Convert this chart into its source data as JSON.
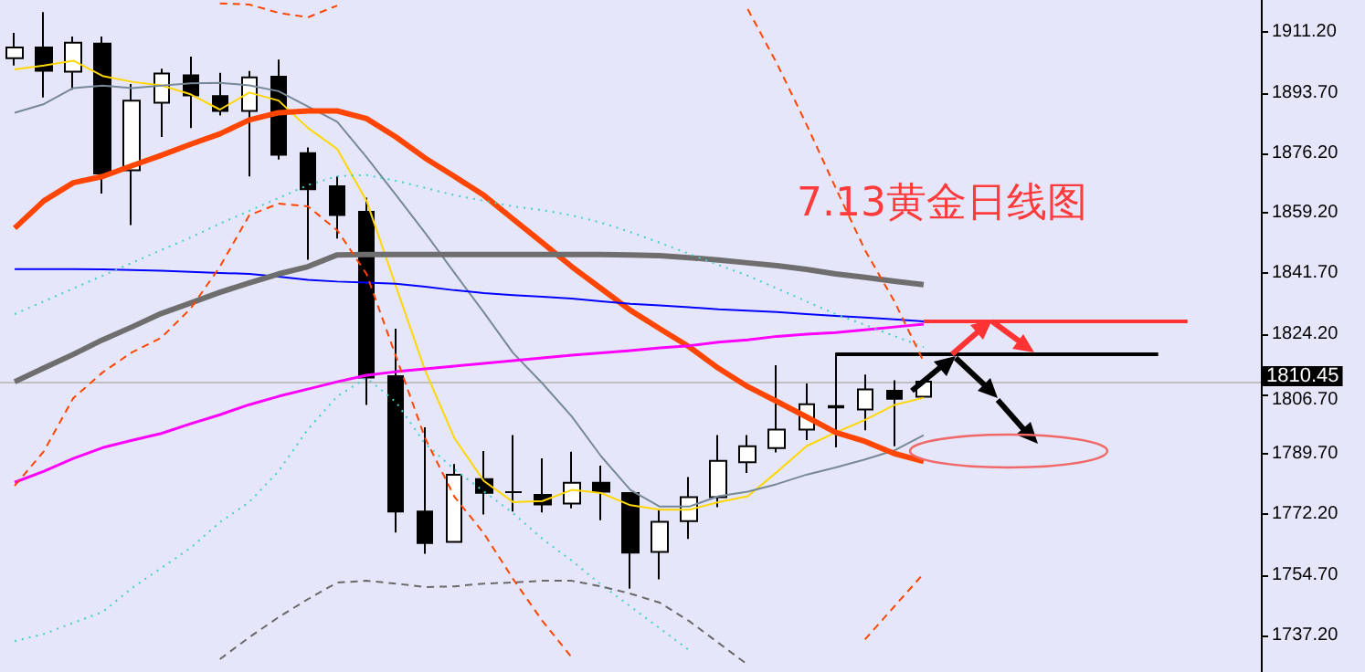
{
  "chart_data": {
    "type": "candlestick",
    "title": "7.13黄金日线图",
    "marker": "none",
    "tick_labels": "y",
    "categories": [
      null,
      null,
      null,
      null,
      null,
      null,
      null,
      null,
      null,
      null,
      null,
      null,
      null,
      null,
      null,
      null,
      null,
      null,
      null,
      null,
      null,
      null,
      null,
      null,
      null,
      null,
      null,
      null,
      null,
      null,
      null,
      null,
      null,
      null,
      null,
      null,
      null,
      null,
      null,
      null,
      null,
      null,
      null
    ],
    "ohlc": [
      [
        1903.7,
        1911.0,
        1901.6,
        1906.8
      ],
      [
        1906.8,
        1917.0,
        1892.4,
        1900.1
      ],
      [
        1899.8,
        1910.0,
        1894.6,
        1908.2
      ],
      [
        1907.9,
        1910.0,
        1864.7,
        1870.5
      ],
      [
        1871.4,
        1896.3,
        1855.6,
        1891.5
      ],
      [
        1890.9,
        1900.7,
        1881.0,
        1899.3
      ],
      [
        1898.8,
        1904.2,
        1883.6,
        1893.0
      ],
      [
        1892.8,
        1899.5,
        1887.2,
        1888.5
      ],
      [
        1888.5,
        1900.0,
        1869.6,
        1898.2
      ],
      [
        1898.4,
        1903.3,
        1874.5,
        1875.9
      ],
      [
        1876.3,
        1878.0,
        1845.6,
        1865.9
      ],
      [
        1866.8,
        1869.6,
        1851.7,
        1858.5
      ],
      [
        1859.4,
        1863.5,
        1803.7,
        1811.6
      ],
      [
        1812.0,
        1825.7,
        1766.9,
        1773.0
      ],
      [
        1773.0,
        1797.3,
        1760.8,
        1763.9
      ],
      [
        1764.2,
        1786.7,
        1764.0,
        1783.6
      ],
      [
        1782.3,
        1790.4,
        1772.1,
        1778.4
      ],
      [
        1778.6,
        1795.0,
        1773.0,
        1778.6
      ],
      [
        1777.8,
        1788.3,
        1772.7,
        1775.0
      ],
      [
        1775.3,
        1790.2,
        1773.9,
        1781.3
      ],
      [
        1781.3,
        1786.2,
        1770.5,
        1778.7
      ],
      [
        1778.3,
        1778.6,
        1750.7,
        1761.1
      ],
      [
        1761.3,
        1773.6,
        1753.4,
        1770.0
      ],
      [
        1770.2,
        1782.9,
        1765.1,
        1777.1
      ],
      [
        1777.1,
        1795.0,
        1774.2,
        1787.6
      ],
      [
        1787.2,
        1795.0,
        1784.1,
        1791.8
      ],
      [
        1791.3,
        1815.2,
        1790.0,
        1796.6
      ],
      [
        1796.6,
        1809.9,
        1793.6,
        1803.9
      ],
      [
        1803.4,
        1818.7,
        1791.5,
        1803.0
      ],
      [
        1802.4,
        1812.5,
        1796.4,
        1808.2
      ],
      [
        1807.8,
        1810.8,
        1791.8,
        1805.5
      ],
      [
        1806.1,
        1810.45,
        1806.1,
        1810.45
      ],
      null,
      null,
      null,
      null,
      null,
      null,
      null,
      null,
      null,
      null,
      null
    ],
    "series": [
      {
        "type": "line",
        "color": "#ffd700",
        "values": [
          1900.5,
          1901.6,
          1903.0,
          1898.6,
          1896.9,
          1895.9,
          1893.3,
          1888.9,
          1893.8,
          1891.5,
          1883.6,
          1877.5,
          1862.6,
          1838.0,
          1813.6,
          1794.1,
          1781.8,
          1775.7,
          1776.0,
          1779.2,
          1778.3,
          1774.8,
          1773.5,
          1773.5,
          1775.7,
          1777.4,
          1784.4,
          1791.8,
          1795.8,
          1799.4,
          1803.7,
          1805.8,
          null,
          null,
          null,
          null,
          null,
          null,
          null,
          null,
          null,
          null,
          null
        ]
      },
      {
        "type": "line",
        "color": "#778899",
        "values": [
          1888.0,
          1890.5,
          1895.1,
          1895.8,
          1895.1,
          1895.8,
          1896.5,
          1896.6,
          1895.9,
          1894.2,
          1889.8,
          1885.4,
          1875.2,
          1864.3,
          1853.3,
          1841.8,
          1830.4,
          1818.7,
          1809.9,
          1800.4,
          1788.9,
          1779.2,
          1774.4,
          1774.4,
          1777.4,
          1778.7,
          1780.9,
          1783.6,
          1785.7,
          1788.0,
          1790.6,
          1795.0,
          null,
          null,
          null,
          null,
          null,
          null,
          null,
          null,
          null,
          null,
          null
        ]
      },
      {
        "type": "line",
        "color": "#ff4500",
        "values": [
          1854.7,
          1862.6,
          1867.8,
          1869.6,
          1872.7,
          1875.7,
          1878.9,
          1881.9,
          1885.9,
          1888.0,
          1888.5,
          1888.5,
          1886.3,
          1881.0,
          1874.9,
          1869.6,
          1864.2,
          1857.3,
          1850.5,
          1843.6,
          1837.3,
          1831.0,
          1825.7,
          1820.5,
          1814.3,
          1809.0,
          1804.7,
          1800.3,
          1795.8,
          1793.2,
          1789.7,
          1787.4,
          null,
          null,
          null,
          null,
          null,
          null,
          null,
          null,
          null,
          null,
          null
        ]
      },
      {
        "type": "line",
        "color": "#0000ff",
        "values": [
          1842.9,
          1842.9,
          1842.9,
          1842.8,
          1842.6,
          1842.4,
          1842.1,
          1841.8,
          1841.5,
          1840.7,
          1839.8,
          1839.3,
          1839.0,
          1838.7,
          1837.8,
          1836.8,
          1836.0,
          1835.4,
          1834.9,
          1834.4,
          1833.6,
          1832.9,
          1832.4,
          1831.9,
          1831.3,
          1830.9,
          1830.5,
          1829.9,
          1829.4,
          1828.9,
          1828.4,
          1827.8,
          null,
          null,
          null,
          null,
          null,
          null,
          null,
          null,
          null,
          null,
          null
        ]
      },
      {
        "type": "line",
        "color": "#6e6e6e",
        "values": [
          1810.4,
          1814.4,
          1818.3,
          1822.5,
          1826.2,
          1830.1,
          1833.1,
          1836.2,
          1838.9,
          1841.5,
          1843.6,
          1847.0,
          1847.1,
          1847.1,
          1847.1,
          1847.1,
          1847.1,
          1847.1,
          1847.1,
          1847.1,
          1847.1,
          1847.0,
          1846.8,
          1846.2,
          1845.5,
          1844.7,
          1843.9,
          1842.8,
          1841.5,
          1840.5,
          1839.4,
          1838.4,
          null,
          null,
          null,
          null,
          null,
          null,
          null,
          null,
          null,
          null,
          null
        ]
      },
      {
        "type": "line",
        "color": "#ff00ff",
        "values": [
          1781.4,
          1784.6,
          1788.3,
          1791.4,
          1793.5,
          1795.5,
          1798.3,
          1800.9,
          1803.8,
          1806.2,
          1808.3,
          1810.4,
          1812.3,
          1813.3,
          1814.1,
          1814.9,
          1815.7,
          1816.5,
          1817.3,
          1818.1,
          1818.7,
          1819.4,
          1820.2,
          1820.8,
          1821.8,
          1822.5,
          1823.5,
          1824.1,
          1824.6,
          1825.4,
          1826.2,
          1827.0,
          null,
          null,
          null,
          null,
          null,
          null,
          null,
          null,
          null,
          null,
          null
        ]
      },
      {
        "type": "line",
        "color": "#40d0c8",
        "line_style": "dotted",
        "values": [
          1829.9,
          1833.6,
          1837.3,
          1841.0,
          1844.7,
          1848.4,
          1852.0,
          1856.0,
          1859.7,
          1863.4,
          1867.1,
          1869.7,
          1870.0,
          1868.4,
          1866.3,
          1864.2,
          1862.6,
          1861.0,
          1859.9,
          1858.4,
          1856.3,
          1853.6,
          1850.5,
          1847.3,
          1844.1,
          1841.0,
          1837.3,
          1833.6,
          1829.9,
          1826.8,
          1823.6,
          1820.4,
          null,
          null,
          null,
          null,
          null,
          null,
          null,
          null,
          null,
          null,
          null
        ]
      },
      {
        "type": "line",
        "color": "#40d0c8",
        "line_style": "dotted",
        "values": [
          1735.6,
          1737.7,
          1740.9,
          1744.0,
          1750.9,
          1756.7,
          1762.5,
          1769.9,
          1775.7,
          1784.6,
          1796.7,
          1806.2,
          1811.5,
          1804.6,
          1792.5,
          1785.1,
          1778.8,
          1772.5,
          1765.1,
          1758.8,
          1751.9,
          1745.6,
          1739.3,
          1733.0,
          null,
          null,
          null,
          null,
          null,
          null,
          null,
          null,
          null,
          null,
          null,
          null,
          null,
          null,
          null,
          null,
          null,
          null,
          null
        ]
      },
      {
        "type": "line",
        "color": "#ff4500",
        "line_style": "dashed",
        "values": [
          null,
          null,
          null,
          null,
          null,
          null,
          null,
          1919.5,
          1919.2,
          1916.8,
          1915.5,
          1918.9,
          null,
          null,
          null,
          null,
          null,
          null,
          null,
          null,
          null,
          null,
          null,
          null,
          null,
          1917.9,
          1902.1,
          1884.7,
          1866.3,
          1848.4,
          1833.6,
          1816.2,
          null,
          null,
          null,
          null,
          null,
          null,
          null,
          null,
          null,
          null,
          null
        ]
      },
      {
        "type": "line",
        "color": "#ff4500",
        "line_style": "dashed",
        "values": [
          1780.4,
          1790.4,
          1805.7,
          1813.1,
          1818.9,
          1823.1,
          1831.5,
          1843.6,
          1858.4,
          1861.8,
          1861.0,
          1854.1,
          1841.5,
          1817.8,
          1794.1,
          1777.2,
          1766.7,
          1753.5,
          1741.4,
          1730.9,
          null,
          null,
          null,
          null,
          null,
          null,
          null,
          null,
          null,
          1736.1,
          1745.6,
          1755.1,
          null,
          null,
          null,
          null,
          null,
          null,
          null,
          null,
          null,
          null,
          null
        ]
      },
      {
        "type": "line",
        "color": "#696969",
        "line_style": "dashed",
        "values": [
          null,
          null,
          null,
          null,
          null,
          null,
          null,
          1730.4,
          1736.7,
          1742.5,
          1747.7,
          1752.5,
          1753.0,
          1752.2,
          1751.2,
          1751.4,
          1752.2,
          1752.5,
          1753.0,
          1753.0,
          1751.4,
          1749.3,
          1746.7,
          1741.4,
          1735.1,
          1728.8,
          null,
          null,
          null,
          null,
          null,
          null,
          null,
          null,
          null,
          null,
          null,
          null,
          null,
          null,
          null,
          null,
          null
        ]
      }
    ],
    "ref_lines": [
      {
        "axis": "y",
        "value": 1810.45,
        "label": "1810.45",
        "color": "#c0c0c0"
      },
      {
        "axis": "y",
        "value": 1827.8,
        "color": "#ff3333"
      },
      {
        "axis": "y",
        "value": 1818.3,
        "color": "#000000"
      }
    ],
    "ylim": [
      1726.7,
      1920.5
    ],
    "yticks": [
      {
        "value": 1737.2,
        "label": "1737.20"
      },
      {
        "value": 1754.7,
        "label": "1754.70"
      },
      {
        "value": 1772.2,
        "label": "1772.20"
      },
      {
        "value": 1789.7,
        "label": "1789.70"
      },
      {
        "value": 1806.7,
        "label": "1806.70"
      },
      {
        "value": 1824.2,
        "label": "1824.20"
      },
      {
        "value": 1841.7,
        "label": "1841.70"
      },
      {
        "value": 1859.2,
        "label": "1859.20"
      },
      {
        "value": 1876.2,
        "label": "1876.20"
      },
      {
        "value": 1893.7,
        "label": "1893.70"
      },
      {
        "value": 1911.2,
        "label": "1911.20"
      }
    ]
  }
}
